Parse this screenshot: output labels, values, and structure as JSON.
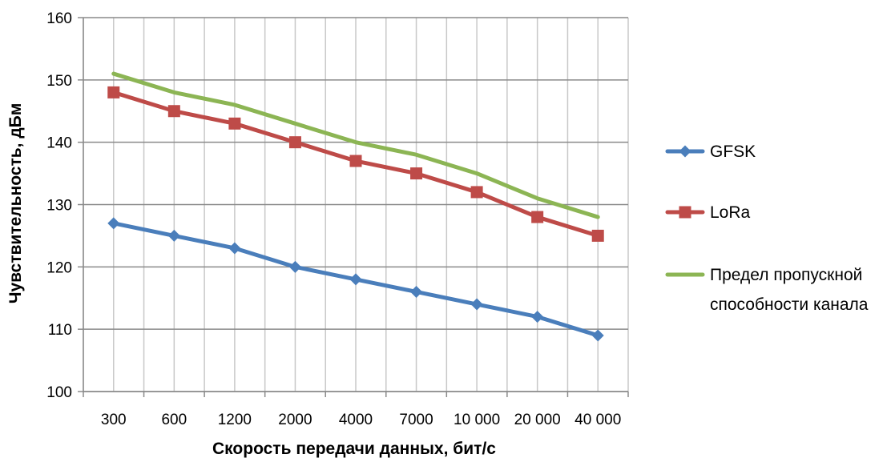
{
  "chart_data": {
    "type": "line",
    "categories": [
      "300",
      "600",
      "1200",
      "2000",
      "4000",
      "7000",
      "10 000",
      "20 000",
      "40 000"
    ],
    "xlabel": "Скорость передачи данных, бит/с",
    "ylabel": "Чувствительность, дБм",
    "ylim": [
      100,
      160
    ],
    "yticks": [
      100,
      110,
      120,
      130,
      140,
      150,
      160
    ],
    "grid": true,
    "legend_position": "right",
    "series": [
      {
        "name": "GFSK",
        "color": "#4a7ebb",
        "marker": "diamond",
        "values": [
          127,
          125,
          123,
          120,
          118,
          116,
          114,
          112,
          109
        ]
      },
      {
        "name": "LoRa",
        "color": "#be4b48",
        "marker": "square",
        "values": [
          148,
          145,
          143,
          140,
          137,
          135,
          132,
          128,
          125
        ]
      },
      {
        "name": "Предел пропускной способности канала",
        "color": "#8cb554",
        "marker": "none",
        "legend_lines": [
          "Предел пропускной",
          "способности канала"
        ],
        "values": [
          151,
          148,
          146,
          143,
          140,
          138,
          135,
          131,
          128
        ]
      }
    ]
  }
}
